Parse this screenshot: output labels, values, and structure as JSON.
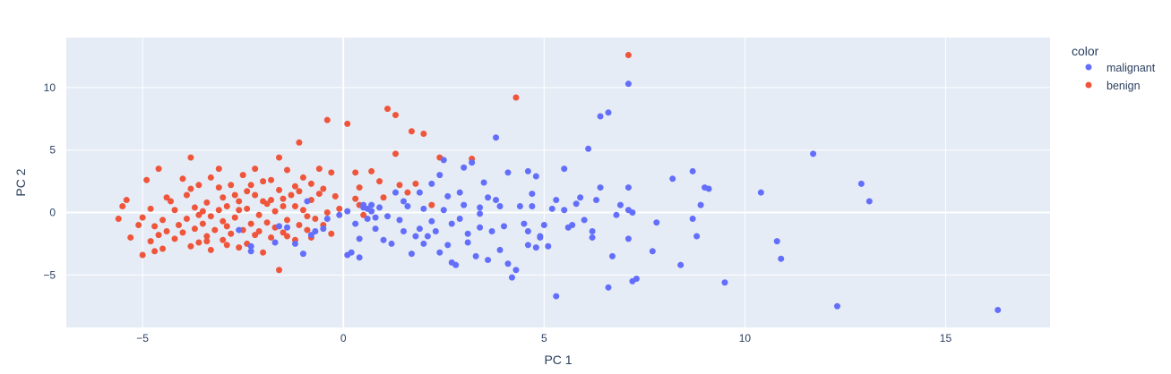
{
  "chart_data": {
    "type": "scatter",
    "xlabel": "PC 1",
    "ylabel": "PC 2",
    "xlim": [
      -6.9,
      17.6
    ],
    "ylim": [
      -9.2,
      14.0
    ],
    "x_ticks": [
      -5,
      0,
      5,
      10,
      15
    ],
    "y_ticks": [
      -5,
      0,
      5,
      10
    ],
    "x_tick_labels": [
      "−5",
      "0",
      "5",
      "10",
      "15"
    ],
    "y_tick_labels": [
      "−5",
      "0",
      "5",
      "10"
    ],
    "grid": true,
    "legend": {
      "title": "color",
      "position": "right"
    },
    "series": [
      {
        "name": "malignant",
        "color": "#636efa",
        "points": [
          [
            16.3,
            -7.8
          ],
          [
            12.3,
            -7.5
          ],
          [
            12.9,
            2.3
          ],
          [
            13.1,
            0.9
          ],
          [
            11.7,
            4.7
          ],
          [
            10.4,
            1.6
          ],
          [
            10.9,
            -3.7
          ],
          [
            10.8,
            -2.3
          ],
          [
            9.5,
            -5.6
          ],
          [
            9.1,
            1.9
          ],
          [
            9.0,
            2.0
          ],
          [
            8.9,
            0.6
          ],
          [
            8.8,
            -1.9
          ],
          [
            8.7,
            3.3
          ],
          [
            8.7,
            -0.5
          ],
          [
            8.4,
            -4.2
          ],
          [
            8.2,
            2.7
          ],
          [
            7.8,
            -0.8
          ],
          [
            7.7,
            -3.1
          ],
          [
            7.3,
            -5.3
          ],
          [
            7.2,
            -5.5
          ],
          [
            7.2,
            0.0
          ],
          [
            7.1,
            0.2
          ],
          [
            7.1,
            10.3
          ],
          [
            7.1,
            -2.1
          ],
          [
            7.1,
            2.0
          ],
          [
            6.9,
            0.6
          ],
          [
            6.7,
            -3.5
          ],
          [
            6.6,
            8.0
          ],
          [
            6.6,
            -6.0
          ],
          [
            6.4,
            7.7
          ],
          [
            6.4,
            2.0
          ],
          [
            6.3,
            1.0
          ],
          [
            6.2,
            -1.5
          ],
          [
            6.2,
            -2.0
          ],
          [
            6.1,
            5.1
          ],
          [
            6.0,
            -0.6
          ],
          [
            5.9,
            1.2
          ],
          [
            5.8,
            0.7
          ],
          [
            5.7,
            -1.0
          ],
          [
            5.5,
            3.5
          ],
          [
            5.5,
            0.2
          ],
          [
            5.3,
            -6.7
          ],
          [
            5.2,
            0.3
          ],
          [
            5.1,
            -2.7
          ],
          [
            5.0,
            -1.0
          ],
          [
            4.9,
            -2.0
          ],
          [
            4.8,
            -2.8
          ],
          [
            4.8,
            2.9
          ],
          [
            4.7,
            1.5
          ],
          [
            4.6,
            -1.5
          ],
          [
            4.6,
            -2.6
          ],
          [
            4.6,
            3.3
          ],
          [
            4.5,
            -0.9
          ],
          [
            4.4,
            0.5
          ],
          [
            4.3,
            -4.6
          ],
          [
            4.2,
            -5.2
          ],
          [
            4.1,
            -4.1
          ],
          [
            4.1,
            3.2
          ],
          [
            4.0,
            -1.1
          ],
          [
            3.9,
            -3.0
          ],
          [
            3.8,
            6.0
          ],
          [
            3.8,
            1.0
          ],
          [
            3.7,
            -1.5
          ],
          [
            3.6,
            -3.8
          ],
          [
            3.5,
            2.4
          ],
          [
            3.4,
            0.4
          ],
          [
            3.4,
            -1.2
          ],
          [
            3.3,
            -3.5
          ],
          [
            3.2,
            4.0
          ],
          [
            3.1,
            -1.7
          ],
          [
            3.1,
            -2.4
          ],
          [
            3.0,
            0.6
          ],
          [
            3.0,
            3.6
          ],
          [
            2.9,
            1.6
          ],
          [
            2.9,
            -0.5
          ],
          [
            2.8,
            -4.2
          ],
          [
            2.7,
            -4.0
          ],
          [
            2.6,
            1.3
          ],
          [
            2.6,
            -2.6
          ],
          [
            2.5,
            4.2
          ],
          [
            2.5,
            0.2
          ],
          [
            2.4,
            -3.2
          ],
          [
            2.3,
            -1.5
          ],
          [
            2.2,
            2.3
          ],
          [
            2.2,
            -0.7
          ],
          [
            2.0,
            0.3
          ],
          [
            2.0,
            -2.5
          ],
          [
            1.9,
            1.6
          ],
          [
            1.8,
            -1.9
          ],
          [
            1.7,
            -3.3
          ],
          [
            1.6,
            0.5
          ],
          [
            1.5,
            -1.5
          ],
          [
            1.4,
            -0.6
          ],
          [
            1.3,
            1.6
          ],
          [
            1.2,
            -2.5
          ],
          [
            1.1,
            -0.3
          ],
          [
            1.0,
            -2.2
          ],
          [
            0.9,
            0.4
          ],
          [
            0.8,
            -1.3
          ],
          [
            0.7,
            0.6
          ],
          [
            0.6,
            -0.5
          ],
          [
            0.5,
            0.4
          ],
          [
            0.4,
            -2.1
          ],
          [
            0.4,
            -3.6
          ],
          [
            0.3,
            -0.9
          ],
          [
            0.2,
            -3.2
          ],
          [
            0.1,
            0.1
          ],
          [
            -0.1,
            -0.2
          ],
          [
            -0.4,
            -0.5
          ],
          [
            -0.5,
            -1.3
          ],
          [
            -0.7,
            -1.5
          ],
          [
            -0.8,
            -1.8
          ],
          [
            -1.0,
            -3.3
          ],
          [
            -1.2,
            -2.5
          ],
          [
            -1.4,
            -1.2
          ],
          [
            -1.7,
            -2.4
          ],
          [
            -2.3,
            -2.7
          ],
          [
            -2.6,
            -1.4
          ],
          [
            -2.3,
            -3.1
          ],
          [
            -1.6,
            -1.1
          ],
          [
            -0.9,
            0.9
          ],
          [
            0.1,
            -3.4
          ],
          [
            2.7,
            -0.9
          ],
          [
            3.6,
            1.2
          ],
          [
            4.9,
            -1.9
          ],
          [
            5.3,
            1.0
          ],
          [
            6.8,
            -0.2
          ],
          [
            2.1,
            -1.9
          ],
          [
            1.9,
            -1.3
          ],
          [
            3.9,
            0.5
          ],
          [
            2.4,
            3.0
          ],
          [
            3.4,
            -0.1
          ],
          [
            4.7,
            0.5
          ],
          [
            5.6,
            -1.2
          ],
          [
            1.5,
            0.9
          ],
          [
            0.6,
            0.3
          ],
          [
            0.5,
            0.6
          ],
          [
            0.7,
            0.1
          ],
          [
            0.8,
            -0.4
          ]
        ]
      },
      {
        "name": "benign",
        "color": "#ef553b",
        "points": [
          [
            7.1,
            12.6
          ],
          [
            4.3,
            9.2
          ],
          [
            1.1,
            8.3
          ],
          [
            1.3,
            7.8
          ],
          [
            -0.4,
            7.4
          ],
          [
            0.1,
            7.1
          ],
          [
            1.7,
            6.5
          ],
          [
            2.0,
            6.3
          ],
          [
            -1.1,
            5.6
          ],
          [
            -1.6,
            4.4
          ],
          [
            1.3,
            4.7
          ],
          [
            2.4,
            4.4
          ],
          [
            -3.8,
            4.4
          ],
          [
            3.2,
            4.3
          ],
          [
            -4.6,
            3.5
          ],
          [
            -1.4,
            3.4
          ],
          [
            -3.1,
            3.5
          ],
          [
            0.7,
            3.3
          ],
          [
            -2.2,
            3.5
          ],
          [
            -0.6,
            3.5
          ],
          [
            -0.3,
            3.2
          ],
          [
            0.3,
            3.2
          ],
          [
            -1.0,
            2.8
          ],
          [
            -2.5,
            3.0
          ],
          [
            -3.3,
            2.8
          ],
          [
            -4.0,
            2.7
          ],
          [
            -4.9,
            2.6
          ],
          [
            -1.8,
            2.6
          ],
          [
            -0.8,
            2.3
          ],
          [
            -3.6,
            2.2
          ],
          [
            -2.8,
            2.2
          ],
          [
            -2.0,
            2.5
          ],
          [
            -1.2,
            2.1
          ],
          [
            0.4,
            2.0
          ],
          [
            1.4,
            2.2
          ],
          [
            1.8,
            2.3
          ],
          [
            -3.1,
            2.0
          ],
          [
            -2.4,
            1.7
          ],
          [
            -1.6,
            1.8
          ],
          [
            -0.6,
            1.5
          ],
          [
            -3.9,
            1.4
          ],
          [
            -4.4,
            1.2
          ],
          [
            -5.4,
            1.0
          ],
          [
            -3.0,
            1.2
          ],
          [
            -2.2,
            1.4
          ],
          [
            -1.5,
            1.1
          ],
          [
            -0.8,
            1.0
          ],
          [
            -0.2,
            1.3
          ],
          [
            0.3,
            1.1
          ],
          [
            1.0,
            1.2
          ],
          [
            -3.4,
            0.8
          ],
          [
            -2.6,
            0.9
          ],
          [
            -1.9,
            0.7
          ],
          [
            -1.2,
            0.5
          ],
          [
            -5.5,
            0.5
          ],
          [
            -4.8,
            0.3
          ],
          [
            -4.2,
            0.2
          ],
          [
            -3.7,
            0.4
          ],
          [
            -3.1,
            0.2
          ],
          [
            -2.4,
            0.3
          ],
          [
            -1.7,
            0.1
          ],
          [
            -1.0,
            0.2
          ],
          [
            -0.4,
            0.0
          ],
          [
            -5.6,
            -0.5
          ],
          [
            -5.0,
            -0.4
          ],
          [
            -4.5,
            -0.6
          ],
          [
            -3.9,
            -0.5
          ],
          [
            -3.3,
            -0.3
          ],
          [
            -2.7,
            -0.4
          ],
          [
            -2.1,
            -0.2
          ],
          [
            -1.4,
            -0.6
          ],
          [
            -0.7,
            -0.5
          ],
          [
            -4.7,
            -1.1
          ],
          [
            -4.1,
            -1.0
          ],
          [
            -3.5,
            -0.9
          ],
          [
            -2.9,
            -1.1
          ],
          [
            -2.3,
            -0.9
          ],
          [
            -1.7,
            -1.2
          ],
          [
            -1.1,
            -1.0
          ],
          [
            -4.6,
            -1.8
          ],
          [
            -4.0,
            -1.6
          ],
          [
            -3.4,
            -1.9
          ],
          [
            -2.8,
            -1.7
          ],
          [
            -2.2,
            -1.8
          ],
          [
            -1.5,
            -1.6
          ],
          [
            -0.9,
            -1.4
          ],
          [
            -4.8,
            -2.3
          ],
          [
            -4.2,
            -2.1
          ],
          [
            -3.6,
            -2.4
          ],
          [
            -3.0,
            -2.2
          ],
          [
            -2.4,
            -2.5
          ],
          [
            -1.8,
            -2.0
          ],
          [
            -1.2,
            -2.2
          ],
          [
            -5.3,
            -2.0
          ],
          [
            -4.7,
            -3.1
          ],
          [
            -4.5,
            -2.9
          ],
          [
            -3.8,
            -2.7
          ],
          [
            -3.3,
            -3.0
          ],
          [
            -2.6,
            -2.8
          ],
          [
            -2.0,
            -3.2
          ],
          [
            -5.0,
            -3.4
          ],
          [
            -1.6,
            -4.6
          ],
          [
            -0.8,
            -2.0
          ],
          [
            -0.5,
            -1.0
          ],
          [
            -0.1,
            0.3
          ],
          [
            0.5,
            -0.2
          ],
          [
            -3.5,
            0.1
          ],
          [
            -2.9,
            0.5
          ],
          [
            -2.0,
            0.9
          ],
          [
            -1.3,
            1.4
          ],
          [
            -0.5,
            1.9
          ],
          [
            0.4,
            0.6
          ],
          [
            -3.2,
            -1.4
          ],
          [
            -2.5,
            -1.4
          ],
          [
            -1.9,
            -0.8
          ],
          [
            -3.7,
            -1.3
          ],
          [
            -4.4,
            -1.5
          ],
          [
            -2.1,
            -1.5
          ],
          [
            -2.6,
            0.2
          ],
          [
            -3.0,
            -0.7
          ],
          [
            -1.5,
            0.5
          ],
          [
            -0.9,
            -0.3
          ],
          [
            -3.8,
            1.9
          ],
          [
            -2.7,
            1.4
          ],
          [
            -1.1,
            1.7
          ],
          [
            -2.3,
            2.2
          ],
          [
            -4.3,
            0.9
          ],
          [
            -5.1,
            -1.0
          ],
          [
            -3.4,
            -2.3
          ],
          [
            -2.9,
            -2.6
          ],
          [
            -1.4,
            -1.9
          ],
          [
            0.9,
            2.5
          ],
          [
            1.6,
            1.6
          ],
          [
            2.2,
            0.6
          ],
          [
            -0.3,
            -1.7
          ],
          [
            -1.8,
            1.0
          ],
          [
            -3.6,
            -0.2
          ]
        ]
      }
    ]
  }
}
